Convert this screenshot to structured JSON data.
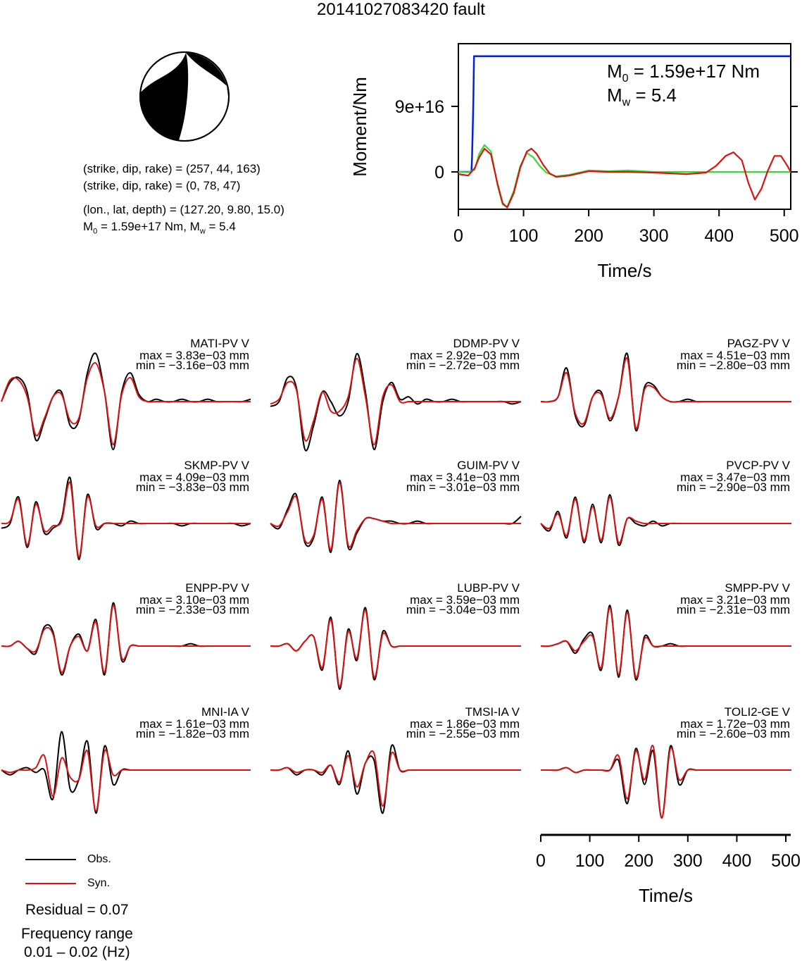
{
  "title": "20141027083420 fault",
  "mechanism": {
    "plane1": "(strike, dip, rake) = (257, 44, 163)",
    "plane2": "(strike, dip, rake) = (0, 78, 47)",
    "location": "(lon., lat, depth) = (127.20, 9.80, 15.0)",
    "moment_prefix": "M",
    "moment_sub": "0",
    "moment_value": " = 1.59e+17 Nm, M",
    "mw_sub": "w",
    "mw_value": " = 5.4"
  },
  "moment_plot": {
    "m0_prefix": "M",
    "m0_sub": "0",
    "m0_value": " = 1.59e+17 Nm",
    "mw_prefix": "M",
    "mw_sub": "w",
    "mw_value": " = 5.4"
  },
  "legend": {
    "obs": "Obs.",
    "syn": "Syn."
  },
  "residual": "Residual = 0.07",
  "frequency_title": "Frequency range",
  "frequency_range": "0.01 – 0.02 (Hz)",
  "colors": {
    "obs": "#000000",
    "syn": "#dd1111",
    "moment": "#0022dd",
    "mrf_green": "#33dd33"
  },
  "chart_data": [
    {
      "type": "line",
      "ylabel": "Moment/Nm",
      "xlabel": "Time/s",
      "xlim": [
        0,
        510
      ],
      "x_ticks": [
        "0",
        "100",
        "200",
        "300",
        "400",
        "500"
      ],
      "y_ticks": [
        "0",
        "9e+16"
      ],
      "series": [
        {
          "color": "#0022dd",
          "x": [
            0,
            20,
            21,
            22,
            23,
            24,
            510
          ],
          "y": [
            0,
            0,
            2e+16,
            6e+16,
            1e+17,
            1.59e+17,
            1.59e+17
          ]
        },
        {
          "color": "#33dd33",
          "x": [
            0,
            15,
            25,
            32,
            40,
            50,
            60,
            68,
            75,
            85,
            95,
            105,
            115,
            125,
            135,
            150,
            170,
            200,
            230,
            260,
            300,
            350,
            400,
            440,
            510
          ],
          "y": [
            0,
            -500000000000000.0,
            3000000000000000.0,
            2.5e+16,
            3.7e+16,
            2.8e+16,
            -1.8e+16,
            -4.5e+16,
            -4.8e+16,
            -2.6e+16,
            8000000000000000.0,
            2.6e+16,
            2e+16,
            8000000000000000.0,
            -1000000000000000.0,
            -6000000000000000.0,
            -4000000000000000.0,
            2000000000000000.0,
            1000000000000000.0,
            2000000000000000.0,
            0.0,
            0.0,
            0.0,
            0.0,
            0.0
          ]
        },
        {
          "color": "#dd1111",
          "x": [
            0,
            15,
            25,
            32,
            40,
            50,
            60,
            68,
            75,
            85,
            95,
            105,
            112,
            120,
            130,
            140,
            150,
            170,
            200,
            230,
            260,
            300,
            350,
            380,
            395,
            410,
            422,
            435,
            445,
            455,
            465,
            475,
            485,
            495,
            505,
            510
          ],
          "y": [
            -3000000000000000.0,
            -5000000000000000.0,
            5000000000000000.0,
            2e+16,
            3.2e+16,
            2.4e+16,
            -1.6e+16,
            -4.3e+16,
            -4.9e+16,
            -2.9e+16,
            6000000000000000.0,
            2.8e+16,
            3.2e+16,
            2.5e+16,
            1e+16,
            -2000000000000000.0,
            -7000000000000000.0,
            -5000000000000000.0,
            1000000000000000.0,
            0.0,
            0.0,
            -1000000000000000.0,
            -3000000000000000.0,
            -1000000000000000.0,
            8000000000000000.0,
            2.2e+16,
            2.7e+16,
            1.6e+16,
            -1.5e+16,
            -3.8e+16,
            -2.3e+16,
            2000000000000000.0,
            2.2e+16,
            2.2e+16,
            8000000000000000.0,
            0.0
          ]
        }
      ]
    },
    {
      "type": "line",
      "xlabel": "Time/s",
      "xlim": [
        0,
        510
      ],
      "x_ticks": [
        "0",
        "100",
        "200",
        "300",
        "400",
        "500"
      ],
      "panels": [
        {
          "name": "MATI-PV V",
          "max": "max = 3.83e−03 mm",
          "min": "min = −3.16e−03 mm",
          "obs": [
            0,
            0.4,
            0.5,
            0.2,
            -0.8,
            -0.4,
            0.1,
            0.2,
            -0.5,
            -0.4,
            0.6,
            1.0,
            0.2,
            -1.0,
            0.2,
            0.6,
            0.15,
            0.0,
            0.05,
            0.0,
            0.0,
            0.05,
            0.0,
            0.0,
            0.05,
            0.0,
            0.0,
            0.0,
            0.0,
            0.05
          ],
          "syn": [
            0,
            0.45,
            0.45,
            0.1,
            -0.7,
            -0.35,
            0.1,
            0.15,
            -0.4,
            -0.35,
            0.5,
            0.8,
            0.2,
            -0.9,
            0.15,
            0.5,
            0.1,
            0.0,
            0.0,
            0.0,
            0.0,
            0.0,
            0.0,
            0.0,
            0.0,
            0.0,
            0.0,
            0.0,
            0.0,
            0.0
          ]
        },
        {
          "name": "DDMP-PV V",
          "max": "max = 2.92e−03 mm",
          "min": "min = −2.72e−03 mm",
          "obs": [
            -0.1,
            0.0,
            0.5,
            0.3,
            -1.0,
            -0.5,
            0.2,
            0.0,
            -0.3,
            0.0,
            1.0,
            0.2,
            -1.0,
            0.0,
            0.4,
            0.05,
            0.1,
            -0.05,
            0.05,
            0.0,
            0.0,
            0.05,
            0.0,
            0.0,
            0.0,
            0.0,
            0.0,
            0.0,
            -0.05,
            0.0
          ],
          "syn": [
            -0.05,
            0.05,
            0.4,
            0.25,
            -0.8,
            -0.4,
            0.2,
            -0.2,
            -0.2,
            0.1,
            0.9,
            0.1,
            -0.9,
            0.1,
            0.35,
            0.0,
            0.0,
            0.0,
            0.0,
            0.0,
            0.0,
            0.0,
            0.0,
            0.0,
            0.0,
            0.0,
            0.0,
            0.0,
            0.0,
            0.0
          ]
        },
        {
          "name": "PAGZ-PV V",
          "max": "max = 4.51e−03 mm",
          "min": "min = −2.80e−03 mm",
          "obs": [
            0,
            0.0,
            0.1,
            0.7,
            -0.3,
            -0.5,
            0.1,
            0.2,
            -0.4,
            0.1,
            1.0,
            -0.6,
            0.3,
            0.35,
            0.1,
            0.0,
            0.0,
            0.05,
            0.0,
            0.0,
            0.0,
            0.0,
            0.0,
            0.0,
            0.0,
            0.0,
            0.0,
            0.0,
            0.0,
            0.0
          ],
          "syn": [
            0,
            0.0,
            0.1,
            0.6,
            -0.25,
            -0.45,
            0.1,
            0.15,
            -0.35,
            0.1,
            0.9,
            -0.55,
            0.25,
            0.3,
            0.1,
            0.0,
            0.0,
            0.0,
            0.0,
            0.0,
            0.0,
            0.0,
            0.0,
            0.0,
            0.0,
            0.0,
            0.0,
            0.0,
            0.0,
            0.0
          ]
        },
        {
          "name": "SKMP-PV V",
          "max": "max = 4.09e−03 mm",
          "min": "min = −3.83e−03 mm",
          "obs": [
            -0.1,
            0.0,
            0.55,
            -0.5,
            0.45,
            -0.2,
            -0.1,
            0.1,
            0.95,
            -0.75,
            0.6,
            -0.1,
            0.0,
            0.0,
            -0.05,
            0.05,
            0.0,
            0.0,
            0.0,
            0.0,
            0.0,
            -0.05,
            0.0,
            0.0,
            0.0,
            0.0,
            0.0,
            0.0,
            -0.05,
            0.0
          ],
          "syn": [
            0,
            0.05,
            0.5,
            -0.45,
            0.4,
            -0.15,
            -0.05,
            0.05,
            0.85,
            -0.7,
            0.55,
            -0.05,
            0.0,
            0.0,
            0.0,
            0.0,
            0.0,
            0.0,
            0.0,
            0.0,
            0.0,
            0.0,
            0.0,
            0.0,
            0.0,
            0.0,
            0.0,
            0.0,
            0.0,
            0.0
          ]
        },
        {
          "name": "GUIM-PV V",
          "max": "max = 3.41e−03 mm",
          "min": "min = −3.01e−03 mm",
          "obs": [
            0,
            -0.1,
            0.3,
            0.6,
            -0.4,
            -0.3,
            0.55,
            -0.6,
            0.9,
            -0.5,
            -0.2,
            0.1,
            0.1,
            0.05,
            0.05,
            0.0,
            0.0,
            0.05,
            0.0,
            0.0,
            0.0,
            0.0,
            0.0,
            0.0,
            0.0,
            0.0,
            0.0,
            0.0,
            0.0,
            0.15
          ],
          "syn": [
            0,
            -0.05,
            0.25,
            0.55,
            -0.35,
            -0.25,
            0.5,
            -0.55,
            0.85,
            -0.45,
            -0.15,
            0.1,
            0.1,
            0.05,
            0.0,
            0.0,
            0.0,
            0.0,
            0.0,
            0.0,
            0.0,
            0.0,
            0.0,
            0.0,
            0.0,
            0.0,
            0.0,
            0.0,
            0.0,
            0.0
          ]
        },
        {
          "name": "PVCP-PV V",
          "max": "max = 3.47e−03 mm",
          "min": "min = −2.90e−03 mm",
          "obs": [
            0,
            -0.15,
            0.25,
            -0.3,
            0.55,
            -0.4,
            0.4,
            -0.4,
            0.6,
            -0.45,
            0.1,
            0.0,
            -0.05,
            0.05,
            -0.05,
            0.0,
            0.0,
            0.0,
            0.0,
            0.0,
            0.0,
            0.0,
            0.0,
            0.0,
            0.0,
            0.0,
            0.0,
            0.0,
            0.0,
            0.0
          ],
          "syn": [
            0,
            -0.1,
            0.2,
            -0.25,
            0.5,
            -0.35,
            0.35,
            -0.35,
            0.55,
            -0.4,
            0.1,
            0.05,
            0.0,
            0.0,
            0.0,
            0.0,
            0.0,
            0.0,
            0.0,
            0.0,
            0.0,
            0.0,
            0.0,
            0.0,
            0.0,
            0.0,
            0.0,
            0.0,
            0.0,
            0.0
          ]
        },
        {
          "name": "ENPP-PV V",
          "max": "max = 3.10e−03 mm",
          "min": "min = −2.33e−03 mm",
          "obs": [
            0,
            0.0,
            0.1,
            -0.05,
            -0.15,
            0.4,
            0.3,
            -0.6,
            0.0,
            0.25,
            -0.1,
            0.55,
            -0.6,
            0.9,
            -0.3,
            0.0,
            0.0,
            0.0,
            0.0,
            0.0,
            0.0,
            0.0,
            0.05,
            0.0,
            0.0,
            0.0,
            0.0,
            0.0,
            0.0,
            0.0
          ],
          "syn": [
            0,
            0.0,
            0.1,
            -0.05,
            -0.1,
            0.35,
            0.25,
            -0.55,
            0.0,
            0.2,
            -0.1,
            0.5,
            -0.55,
            0.85,
            -0.25,
            0.0,
            0.0,
            0.0,
            0.0,
            0.0,
            0.0,
            0.0,
            0.0,
            0.0,
            0.0,
            0.0,
            0.0,
            0.0,
            0.0,
            0.0
          ]
        },
        {
          "name": "LUBP-PV V",
          "max": "max = 3.59e−03 mm",
          "min": "min = −3.04e−03 mm",
          "obs": [
            0,
            0.0,
            0.05,
            -0.1,
            0.1,
            0.2,
            -0.5,
            0.6,
            -0.9,
            0.35,
            -0.3,
            0.8,
            -0.7,
            0.3,
            0.0,
            0.0,
            0.0,
            0.0,
            0.0,
            0.0,
            0.0,
            0.0,
            0.0,
            0.0,
            0.0,
            0.0,
            0.0,
            0.0,
            0.0,
            0.0
          ],
          "syn": [
            0,
            0.0,
            0.05,
            -0.1,
            0.1,
            0.2,
            -0.45,
            0.55,
            -0.85,
            0.3,
            -0.25,
            0.75,
            -0.65,
            0.25,
            0.0,
            0.0,
            0.0,
            0.0,
            0.0,
            0.0,
            0.0,
            0.0,
            0.0,
            0.0,
            0.0,
            0.0,
            0.0,
            0.0,
            0.0,
            0.0
          ]
        },
        {
          "name": "SMPP-PV V",
          "max": "max = 3.21e−03 mm",
          "min": "min = −2.31e−03 mm",
          "obs": [
            0,
            0.0,
            0.05,
            0.1,
            -0.15,
            0.15,
            0.25,
            -0.5,
            0.85,
            -0.65,
            0.75,
            -0.7,
            0.2,
            0.0,
            0.0,
            0.05,
            0.0,
            0.0,
            0.0,
            0.0,
            0.0,
            0.0,
            0.0,
            0.0,
            0.0,
            0.0,
            0.0,
            0.0,
            0.0,
            0.0
          ],
          "syn": [
            0,
            0.0,
            0.05,
            0.1,
            -0.1,
            0.1,
            0.2,
            -0.45,
            0.8,
            -0.6,
            0.7,
            -0.65,
            0.15,
            0.0,
            0.0,
            0.0,
            0.0,
            0.0,
            0.0,
            0.0,
            0.0,
            0.0,
            0.0,
            0.0,
            0.0,
            0.0,
            0.0,
            0.0,
            0.0,
            0.0
          ]
        },
        {
          "name": "MNI-IA V",
          "max": "max = 1.61e−03 mm",
          "min": "min = −1.82e−03 mm",
          "obs": [
            0,
            -0.1,
            0.0,
            0.05,
            -0.05,
            0.0,
            -0.6,
            0.8,
            -0.4,
            -0.2,
            0.6,
            -0.9,
            0.5,
            -0.3,
            0.0,
            0.0,
            0.0,
            0.0,
            0.0,
            0.0,
            0.0,
            0.0,
            0.0,
            0.0,
            0.0,
            0.0,
            0.0,
            0.0,
            0.0,
            0.0
          ],
          "syn": [
            0,
            -0.05,
            0.0,
            0.0,
            0.05,
            0.3,
            -0.55,
            0.25,
            -0.15,
            -0.2,
            0.4,
            -0.85,
            0.4,
            -0.1,
            0.0,
            0.0,
            0.0,
            0.0,
            0.0,
            0.0,
            0.0,
            0.0,
            0.0,
            0.0,
            0.0,
            0.0,
            0.0,
            0.0,
            0.0,
            0.0
          ]
        },
        {
          "name": "TMSI-IA V",
          "max": "max = 1.86e−03 mm",
          "min": "min = −2.55e−03 mm",
          "obs": [
            0,
            0.0,
            0.05,
            -0.1,
            0.0,
            0.0,
            -0.1,
            0.1,
            -0.3,
            0.4,
            -0.5,
            0.15,
            0.2,
            -0.9,
            0.5,
            0.0,
            0.0,
            0.0,
            0.0,
            0.0,
            0.0,
            0.0,
            0.0,
            0.0,
            0.0,
            0.0,
            0.0,
            0.0,
            0.0,
            0.0
          ],
          "syn": [
            0,
            0.0,
            0.05,
            -0.05,
            0.0,
            0.0,
            -0.05,
            0.1,
            -0.25,
            0.3,
            -0.35,
            0.15,
            0.35,
            -0.75,
            0.35,
            0.0,
            0.0,
            0.0,
            0.0,
            0.0,
            0.0,
            0.0,
            0.0,
            0.0,
            0.0,
            0.0,
            0.0,
            0.0,
            0.0,
            0.0
          ]
        },
        {
          "name": "TOLI2-GE V",
          "max": "max = 1.72e−03 mm",
          "min": "min = −2.60e−03 mm",
          "obs": [
            0,
            0.0,
            0.0,
            0.05,
            -0.05,
            0.0,
            0.0,
            0.0,
            0.0,
            0.2,
            -0.7,
            0.45,
            -0.3,
            0.4,
            -1.0,
            0.5,
            -0.3,
            0.0,
            0.0,
            0.0,
            0.0,
            0.0,
            0.0,
            0.0,
            0.0,
            0.0,
            0.0,
            0.0,
            0.0,
            0.0
          ],
          "syn": [
            0,
            0.0,
            0.0,
            0.05,
            -0.05,
            0.0,
            0.0,
            0.0,
            0.0,
            0.3,
            -0.6,
            0.4,
            -0.2,
            0.5,
            -1.0,
            0.45,
            -0.2,
            0.0,
            0.0,
            0.0,
            0.0,
            0.0,
            0.0,
            0.0,
            0.0,
            0.0,
            0.0,
            0.0,
            0.0,
            0.0
          ]
        }
      ]
    }
  ]
}
